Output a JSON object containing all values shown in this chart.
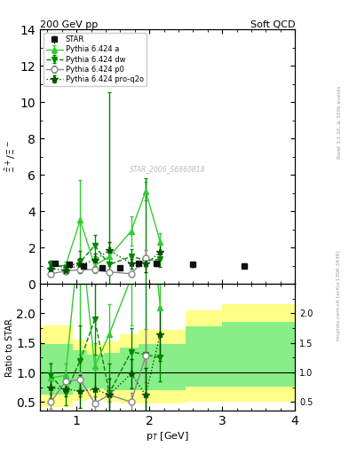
{
  "title_left": "200 GeV pp",
  "title_right": "Soft QCD",
  "ylabel_main": "$\\bar{\\Xi}^+ / \\Xi^-$",
  "ylabel_ratio": "Ratio to STAR",
  "xlabel": "p$_T$ [GeV]",
  "right_label_top": "Rivet 3.1.10, ≥ 100k events",
  "right_label_bot": "mcplots.cern.ch [arXiv:1306.3436]",
  "watermark": "STAR_2006_S6860818",
  "star_x": [
    0.7,
    0.9,
    1.1,
    1.35,
    1.6,
    1.85,
    2.1,
    2.6,
    3.3
  ],
  "star_y": [
    1.1,
    1.05,
    1.0,
    0.9,
    0.9,
    1.1,
    1.1,
    1.05,
    1.0
  ],
  "star_ey": [
    0.12,
    0.1,
    0.1,
    0.08,
    0.1,
    0.18,
    0.18,
    0.15,
    0.15
  ],
  "pythia_a_x": [
    0.65,
    0.85,
    1.05,
    1.25,
    1.45,
    1.75,
    1.95,
    2.15
  ],
  "pythia_a_y": [
    1.0,
    1.0,
    3.5,
    1.0,
    1.5,
    2.9,
    5.1,
    2.3
  ],
  "pythia_a_ey": [
    0.25,
    0.2,
    2.2,
    0.4,
    0.5,
    0.8,
    0.5,
    0.5
  ],
  "pythia_dw_x": [
    0.65,
    0.85,
    1.05,
    1.25,
    1.45,
    1.75,
    1.95,
    2.15
  ],
  "pythia_dw_y": [
    1.05,
    0.9,
    1.2,
    2.1,
    1.05,
    1.5,
    1.3,
    1.35
  ],
  "pythia_dw_ey": [
    0.2,
    0.15,
    0.6,
    0.6,
    9.5,
    0.4,
    4.5,
    0.4
  ],
  "pythia_p0_x": [
    0.65,
    0.85,
    1.05,
    1.25,
    1.45,
    1.75,
    1.95
  ],
  "pythia_p0_y": [
    0.55,
    0.7,
    0.78,
    0.78,
    0.65,
    0.55,
    1.4
  ],
  "pythia_p0_ey": [
    0.12,
    0.12,
    0.12,
    0.15,
    0.12,
    0.15,
    0.45
  ],
  "pythia_pro_x": [
    0.65,
    0.85,
    1.05,
    1.25,
    1.45,
    1.75,
    1.95,
    2.15
  ],
  "pythia_pro_y": [
    0.82,
    0.75,
    1.05,
    1.3,
    1.85,
    1.1,
    1.1,
    1.75
  ],
  "pythia_pro_ey": [
    0.18,
    0.12,
    0.35,
    0.35,
    0.45,
    0.25,
    0.45,
    0.45
  ],
  "ratio_pythia_a_x": [
    0.65,
    0.85,
    1.05,
    1.25,
    1.45,
    1.75,
    1.95,
    2.15
  ],
  "ratio_pythia_a_y": [
    0.91,
    0.95,
    3.5,
    1.1,
    1.65,
    2.6,
    4.6,
    2.1
  ],
  "ratio_pythia_a_ey": [
    0.25,
    0.2,
    2.2,
    0.4,
    0.5,
    0.8,
    0.5,
    0.5
  ],
  "ratio_pythia_dw_x": [
    0.65,
    0.85,
    1.05,
    1.25,
    1.45,
    1.75,
    1.95,
    2.15
  ],
  "ratio_pythia_dw_y": [
    0.95,
    0.65,
    1.2,
    1.9,
    0.65,
    1.35,
    1.3,
    1.25
  ],
  "ratio_pythia_dw_ey": [
    0.2,
    0.2,
    0.6,
    0.6,
    0.5,
    0.4,
    4.5,
    0.4
  ],
  "ratio_pythia_p0_x": [
    0.65,
    0.85,
    1.05,
    1.25,
    1.45,
    1.75,
    1.95
  ],
  "ratio_pythia_p0_y": [
    0.5,
    0.85,
    0.88,
    0.48,
    0.62,
    0.5,
    1.28
  ],
  "ratio_pythia_p0_ey": [
    0.12,
    0.12,
    0.12,
    0.12,
    0.12,
    0.15,
    0.45
  ],
  "ratio_pythia_pro_x": [
    0.65,
    0.85,
    1.05,
    1.25,
    1.45,
    1.75,
    1.95,
    2.15
  ],
  "ratio_pythia_pro_y": [
    0.74,
    0.72,
    0.68,
    0.72,
    0.62,
    0.98,
    0.62,
    1.65
  ],
  "ratio_pythia_pro_ey": [
    0.18,
    0.12,
    0.28,
    0.28,
    0.28,
    0.25,
    0.45,
    0.45
  ],
  "band_yellow_edges": [
    0.5,
    0.75,
    0.95,
    1.15,
    1.375,
    1.6,
    1.85,
    2.1,
    2.5,
    3.0,
    4.0
  ],
  "band_yellow_lo": [
    0.42,
    0.42,
    0.52,
    0.55,
    0.5,
    0.48,
    0.48,
    0.48,
    0.5,
    0.5,
    0.5
  ],
  "band_yellow_hi": [
    1.8,
    1.8,
    1.55,
    1.48,
    1.52,
    1.65,
    1.72,
    1.72,
    2.05,
    2.15,
    2.15
  ],
  "band_green_edges": [
    0.5,
    0.75,
    0.95,
    1.15,
    1.375,
    1.6,
    1.85,
    2.1,
    2.5,
    3.0,
    4.0
  ],
  "band_green_lo": [
    0.62,
    0.62,
    0.7,
    0.73,
    0.7,
    0.7,
    0.7,
    0.7,
    0.76,
    0.76,
    0.76
  ],
  "band_green_hi": [
    1.48,
    1.48,
    1.37,
    1.3,
    1.33,
    1.42,
    1.48,
    1.48,
    1.78,
    1.85,
    1.85
  ],
  "color_a": "#33cc33",
  "color_dw": "#008800",
  "color_p0": "#888888",
  "color_pro": "#005500",
  "color_star": "#111111",
  "color_yellow": "#ffff88",
  "color_green": "#88ee88",
  "xlim": [
    0.5,
    4.0
  ],
  "ylim_main": [
    0,
    14
  ],
  "ylim_ratio": [
    0.35,
    2.5
  ],
  "yticks_main": [
    0,
    2,
    4,
    6,
    8,
    10,
    12,
    14
  ],
  "yticks_ratio": [
    0.5,
    1.0,
    1.5,
    2.0
  ]
}
